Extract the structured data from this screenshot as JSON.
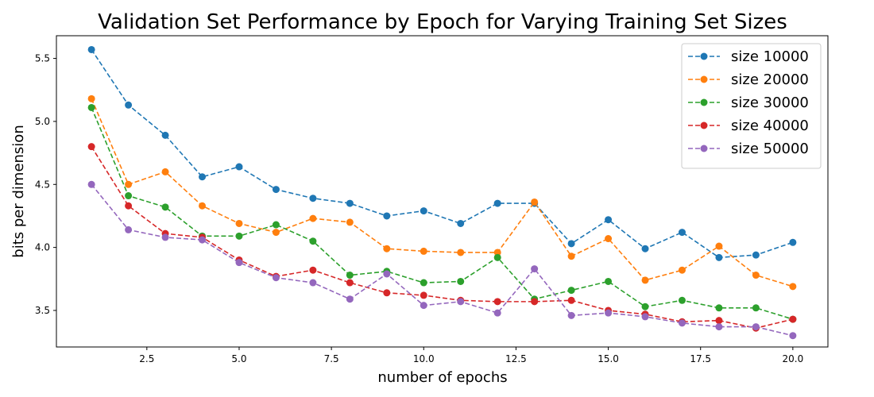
{
  "chart_data": {
    "type": "line",
    "title": "Validation Set Performance by Epoch for Varying Training Set Sizes",
    "xlabel": "number of epochs",
    "ylabel": "bits per dimension",
    "xlim": [
      0.05,
      20.95
    ],
    "ylim": [
      3.21,
      5.68
    ],
    "xticks": [
      "2.5",
      "5.0",
      "7.5",
      "10.0",
      "12.5",
      "15.0",
      "17.5",
      "20.0"
    ],
    "xtick_values": [
      2.5,
      5.0,
      7.5,
      10.0,
      12.5,
      15.0,
      17.5,
      20.0
    ],
    "yticks": [
      "3.5",
      "4.0",
      "4.5",
      "5.0",
      "5.5"
    ],
    "ytick_values": [
      3.5,
      4.0,
      4.5,
      5.0,
      5.5
    ],
    "grid": false,
    "legend_position": "top-right",
    "line_style": "dashed",
    "marker": "circle",
    "x": [
      1,
      2,
      3,
      4,
      5,
      6,
      7,
      8,
      9,
      10,
      11,
      12,
      13,
      14,
      15,
      16,
      17,
      18,
      19,
      20
    ],
    "series": [
      {
        "name": "size 10000",
        "color": "#1f77b4",
        "values": [
          5.57,
          5.13,
          4.89,
          4.56,
          4.64,
          4.46,
          4.39,
          4.35,
          4.25,
          4.29,
          4.19,
          4.35,
          4.35,
          4.03,
          4.22,
          3.99,
          4.12,
          3.92,
          3.94,
          4.04
        ]
      },
      {
        "name": "size 20000",
        "color": "#ff7f0e",
        "values": [
          5.18,
          4.5,
          4.6,
          4.33,
          4.19,
          4.12,
          4.23,
          4.2,
          3.99,
          3.97,
          3.96,
          3.96,
          4.36,
          3.93,
          4.07,
          3.74,
          3.82,
          4.01,
          3.78,
          3.69
        ]
      },
      {
        "name": "size 30000",
        "color": "#2ca02c",
        "values": [
          5.11,
          4.41,
          4.32,
          4.09,
          4.09,
          4.18,
          4.05,
          3.78,
          3.81,
          3.72,
          3.73,
          3.92,
          3.59,
          3.66,
          3.73,
          3.53,
          3.58,
          3.52,
          3.52,
          3.43
        ]
      },
      {
        "name": "size 40000",
        "color": "#d62728",
        "values": [
          4.8,
          4.33,
          4.11,
          4.08,
          3.9,
          3.77,
          3.82,
          3.72,
          3.64,
          3.62,
          3.58,
          3.57,
          3.57,
          3.58,
          3.5,
          3.47,
          3.41,
          3.42,
          3.36,
          3.43
        ]
      },
      {
        "name": "size 50000",
        "color": "#9467bd",
        "values": [
          4.5,
          4.14,
          4.08,
          4.06,
          3.88,
          3.76,
          3.72,
          3.59,
          3.79,
          3.54,
          3.57,
          3.48,
          3.83,
          3.46,
          3.48,
          3.45,
          3.4,
          3.37,
          3.37,
          3.3
        ]
      }
    ]
  }
}
